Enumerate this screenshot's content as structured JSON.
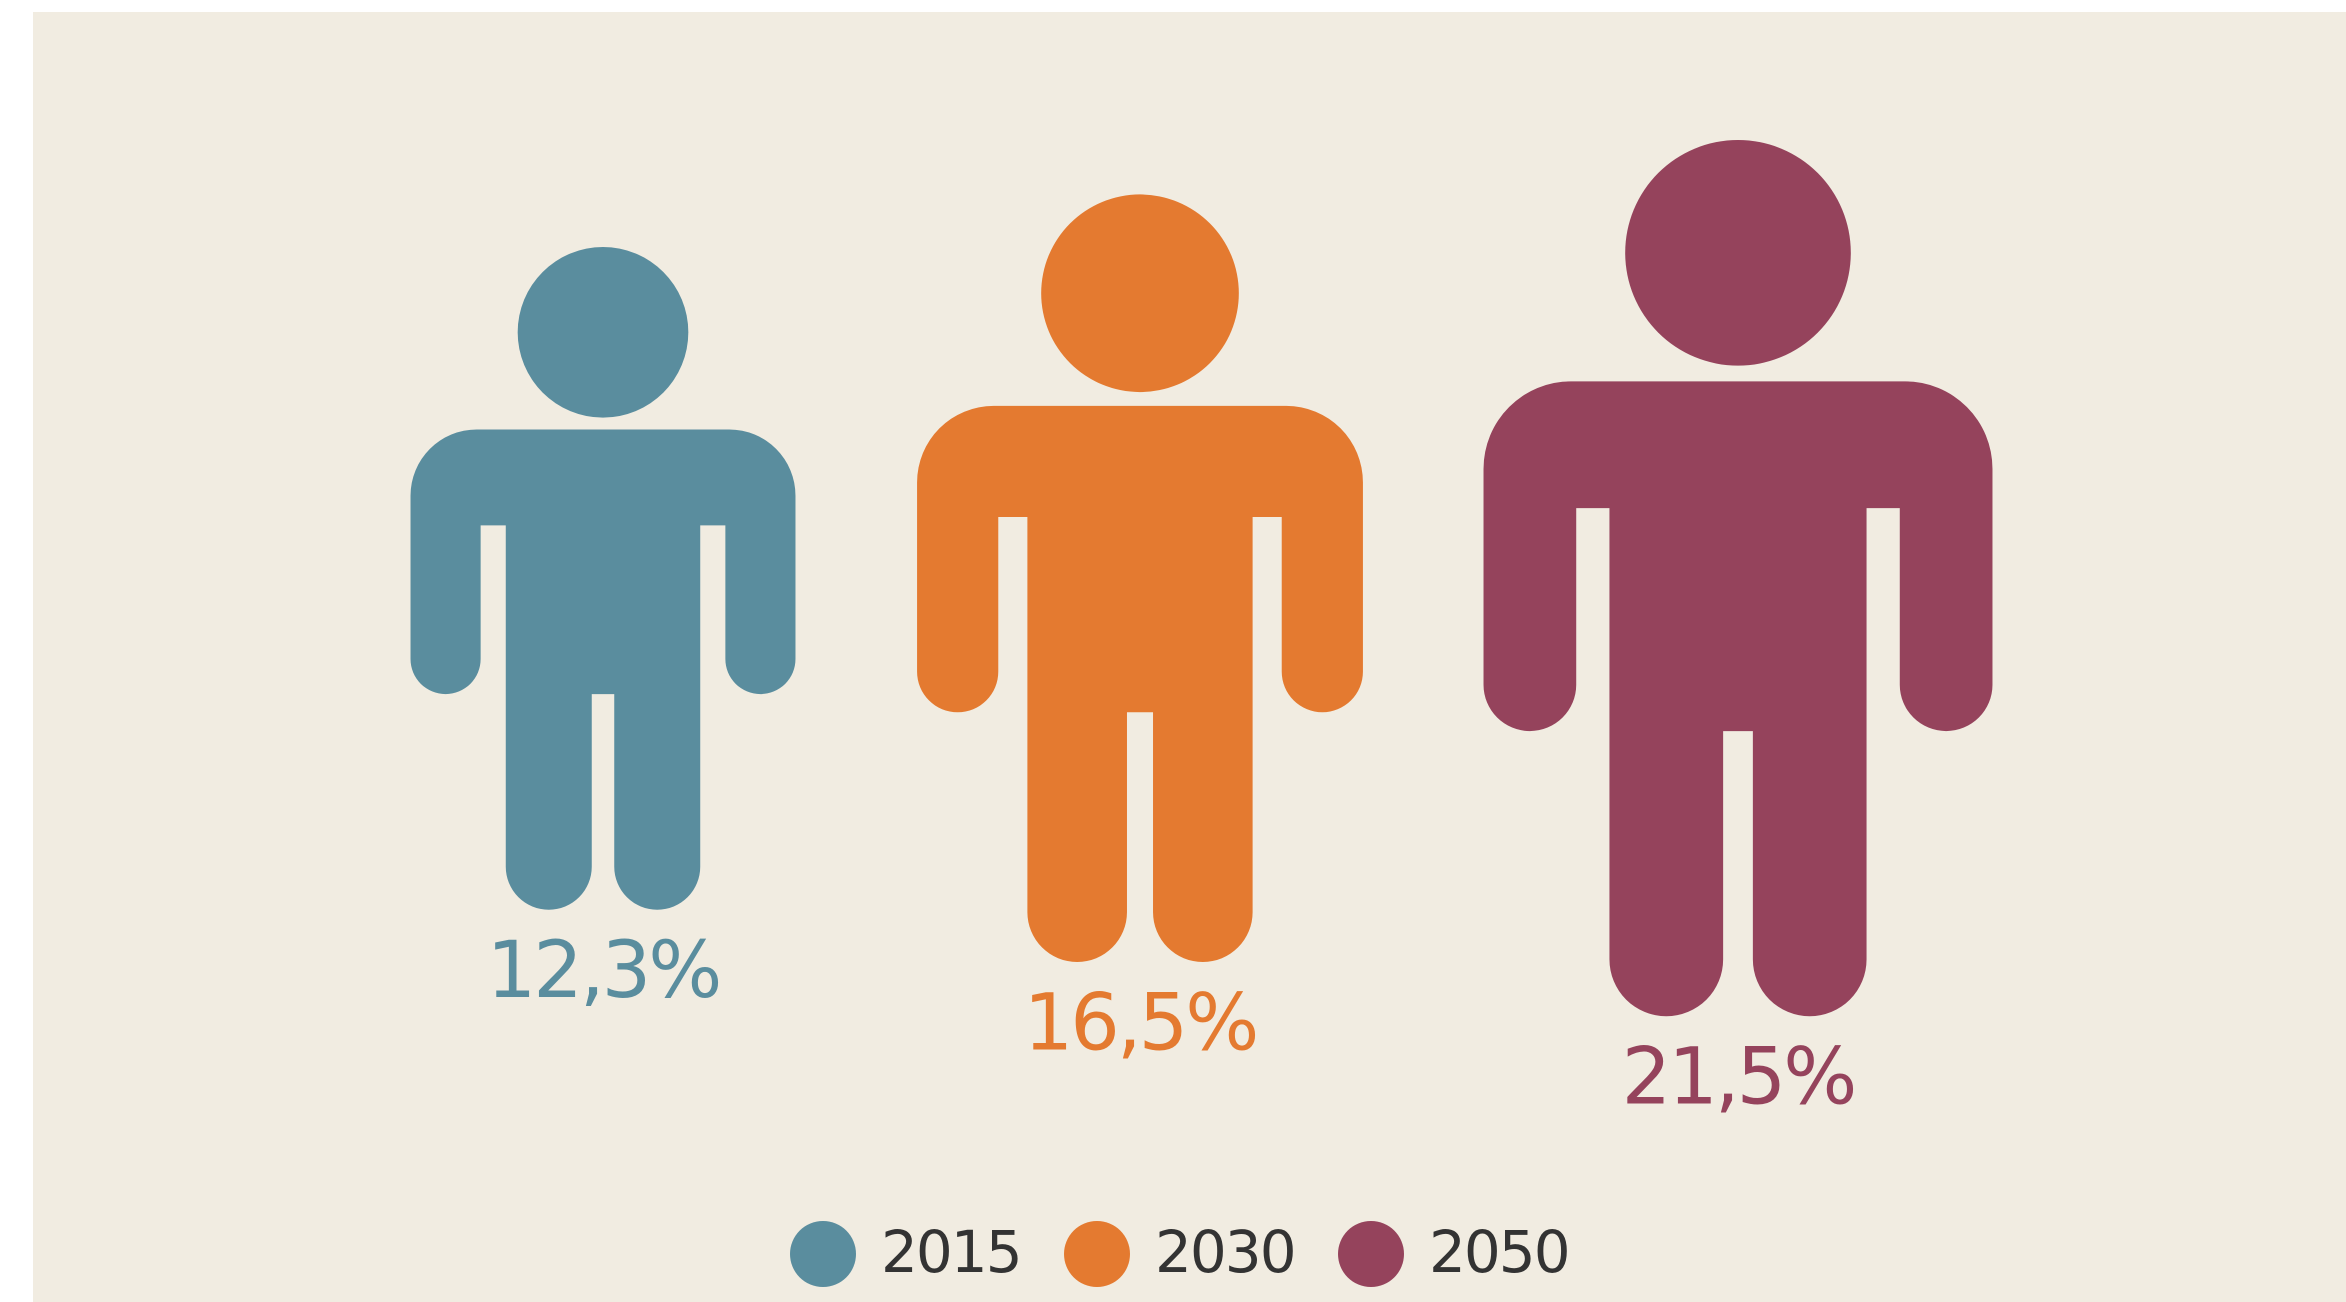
{
  "chart_data": {
    "type": "pictograph",
    "categories": [
      "2015",
      "2030",
      "2050"
    ],
    "values": [
      12.3,
      16.5,
      21.5
    ],
    "value_labels": [
      "12,3%",
      "16,5%",
      "21,5%"
    ],
    "colors": [
      "#5a8d9e",
      "#e47a30",
      "#95435c"
    ]
  }
}
